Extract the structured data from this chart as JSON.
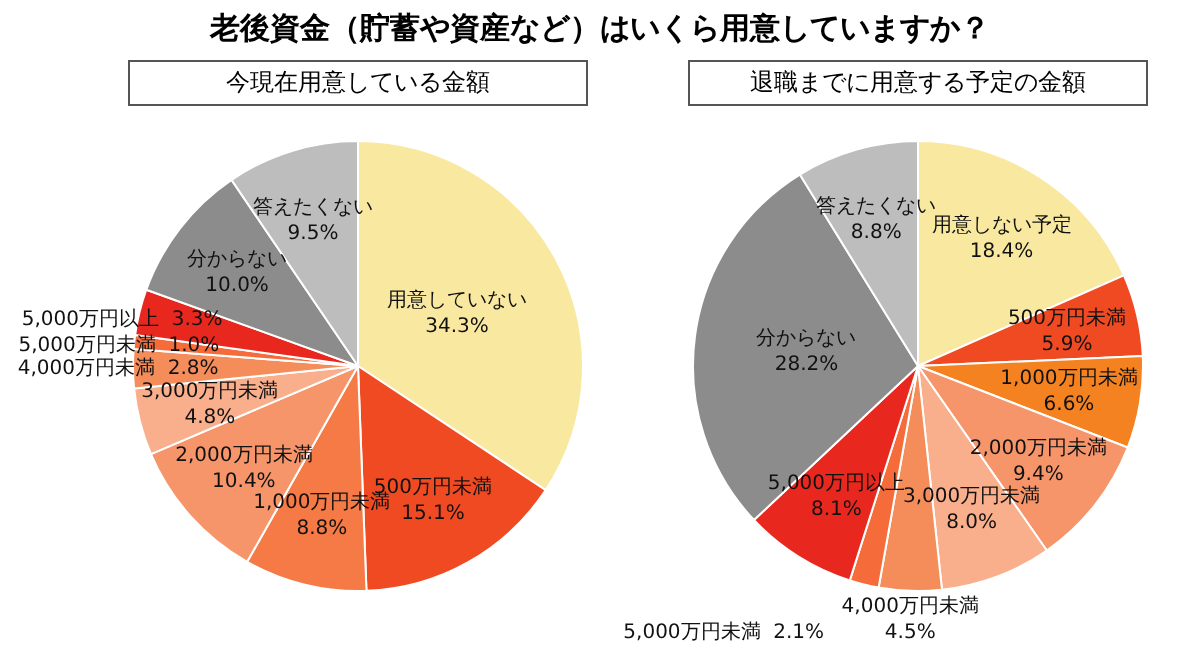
{
  "chart_data": [
    {
      "type": "pie",
      "title": "老後資金（貯蓄や資産など）はいくら用意していますか？",
      "subtitle": "今現在用意している金額",
      "categories": [
        "用意していない",
        "500万円未満",
        "1,000万円未満",
        "2,000万円未満",
        "3,000万円未満",
        "4,000万円未満",
        "5,000万円未満",
        "5,000万円以上",
        "分からない",
        "答えたくない"
      ],
      "values": [
        34.3,
        15.1,
        8.8,
        10.4,
        4.8,
        2.8,
        1.0,
        3.3,
        10.0,
        9.5
      ],
      "value_labels": [
        "34.3%",
        "15.1%",
        "8.8%",
        "10.4%",
        "4.8%",
        "2.8%",
        "1.0%",
        "3.3%",
        "10.0%",
        "9.5%"
      ],
      "colors": [
        "#f9e9a0",
        "#f04a23",
        "#f57a45",
        "#f7956a",
        "#f9ae8c",
        "#f58d5b",
        "#f56b3a",
        "#e8281e",
        "#8c8c8c",
        "#bdbdbd"
      ],
      "legend": false
    },
    {
      "type": "pie",
      "subtitle": "退職までに用意する予定の金額",
      "categories": [
        "用意しない予定",
        "500万円未満",
        "1,000万円未満",
        "2,000万円未満",
        "3,000万円未満",
        "4,000万円未満",
        "5,000万円未満",
        "5,000万円以上",
        "分からない",
        "答えたくない"
      ],
      "values": [
        18.4,
        5.9,
        6.6,
        9.4,
        8.0,
        4.5,
        2.1,
        8.1,
        28.2,
        8.8
      ],
      "value_labels": [
        "18.4%",
        "5.9%",
        "6.6%",
        "9.4%",
        "8.0%",
        "4.5%",
        "2.1%",
        "8.1%",
        "28.2%",
        "8.8%"
      ],
      "colors": [
        "#f9e9a0",
        "#f04a23",
        "#f58220",
        "#f7956a",
        "#f9ae8c",
        "#f58d5b",
        "#f56b3a",
        "#e8281e",
        "#8c8c8c",
        "#bdbdbd"
      ],
      "legend": false
    }
  ]
}
